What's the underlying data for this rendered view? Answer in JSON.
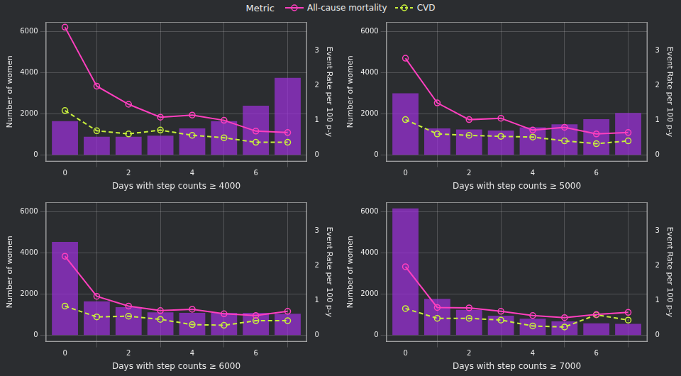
{
  "chart_data": [
    {
      "type": "bar",
      "legend": "top",
      "legend_title": "Metric",
      "x": [
        0,
        1,
        2,
        3,
        4,
        5,
        6,
        7
      ],
      "values": [
        1650,
        900,
        900,
        950,
        1300,
        1650,
        2400,
        3750
      ],
      "color": "#9b30d9",
      "series": [
        {
          "name": "All-cause mortality",
          "type": "line",
          "axis": "y2",
          "color": "#ff3fbf",
          "marker": "circle",
          "line_style": "solid",
          "values": [
            3.67,
            1.98,
            1.46,
            1.09,
            1.15,
            1.0,
            0.69,
            0.65
          ]
        },
        {
          "name": "CVD",
          "type": "line",
          "axis": "y2",
          "color": "#c8f03c",
          "marker": "circle",
          "line_style": "dashed",
          "values": [
            1.28,
            0.7,
            0.61,
            0.72,
            0.57,
            0.5,
            0.37,
            0.37
          ]
        }
      ],
      "xlabel": "Days with step counts ≥ 4000",
      "ylabel": "Number of women",
      "y2label": "Event Rate per 100 p-y",
      "xlim": [
        -0.6,
        7.6
      ],
      "xticks": [
        0,
        2,
        4,
        6
      ],
      "ylim": [
        -300,
        6450
      ],
      "yticks": [
        0,
        2000,
        4000,
        6000
      ],
      "y2lim": [
        -0.18,
        3.82
      ],
      "y2ticks": [
        0,
        1,
        2,
        3
      ],
      "grid": true
    },
    {
      "type": "bar",
      "x": [
        0,
        1,
        2,
        3,
        4,
        5,
        6,
        7
      ],
      "values": [
        3000,
        1300,
        1250,
        1200,
        1350,
        1500,
        1750,
        2050
      ],
      "color": "#9b30d9",
      "series": [
        {
          "name": "All-cause mortality",
          "type": "line",
          "axis": "y2",
          "color": "#ff3fbf",
          "marker": "circle",
          "line_style": "solid",
          "values": [
            2.78,
            1.5,
            1.02,
            1.06,
            0.72,
            0.8,
            0.61,
            0.65
          ]
        },
        {
          "name": "CVD",
          "type": "line",
          "axis": "y2",
          "color": "#c8f03c",
          "marker": "circle",
          "line_style": "dashed",
          "values": [
            1.02,
            0.61,
            0.57,
            0.54,
            0.52,
            0.41,
            0.33,
            0.41
          ]
        }
      ],
      "xlabel": "Days with step counts ≥ 5000",
      "ylabel": "Number of women",
      "y2label": "Event Rate per 100 p-y",
      "xlim": [
        -0.6,
        7.6
      ],
      "xticks": [
        0,
        2,
        4,
        6
      ],
      "ylim": [
        -300,
        6450
      ],
      "yticks": [
        0,
        2000,
        4000,
        6000
      ],
      "y2lim": [
        -0.18,
        3.82
      ],
      "y2ticks": [
        0,
        1,
        2,
        3
      ],
      "grid": true
    },
    {
      "type": "bar",
      "x": [
        0,
        1,
        2,
        3,
        4,
        5,
        6,
        7
      ],
      "values": [
        4530,
        1650,
        1370,
        1120,
        1090,
        1090,
        1090,
        1050
      ],
      "color": "#9b30d9",
      "series": [
        {
          "name": "All-cause mortality",
          "type": "line",
          "axis": "y2",
          "color": "#ff3fbf",
          "marker": "circle",
          "line_style": "solid",
          "values": [
            2.27,
            1.12,
            0.84,
            0.71,
            0.75,
            0.62,
            0.57,
            0.69
          ]
        },
        {
          "name": "CVD",
          "type": "line",
          "axis": "y2",
          "color": "#c8f03c",
          "marker": "circle",
          "line_style": "dashed",
          "values": [
            0.84,
            0.53,
            0.55,
            0.46,
            0.31,
            0.29,
            0.42,
            0.42
          ]
        }
      ],
      "xlabel": "Days with step counts ≥ 6000",
      "ylabel": "Number of women",
      "y2label": "Event Rate per 100 p-y",
      "xlim": [
        -0.6,
        7.6
      ],
      "xticks": [
        0,
        2,
        4,
        6
      ],
      "ylim": [
        -300,
        6450
      ],
      "yticks": [
        0,
        2000,
        4000,
        6000
      ],
      "y2lim": [
        -0.18,
        3.82
      ],
      "y2ticks": [
        0,
        1,
        2,
        3
      ],
      "grid": true
    },
    {
      "type": "bar",
      "x": [
        0,
        1,
        2,
        3,
        4,
        5,
        6,
        7
      ],
      "values": [
        6150,
        1770,
        1240,
        960,
        810,
        680,
        590,
        560
      ],
      "color": "#9b30d9",
      "series": [
        {
          "name": "All-cause mortality",
          "type": "line",
          "axis": "y2",
          "color": "#ff3fbf",
          "marker": "circle",
          "line_style": "solid",
          "values": [
            1.97,
            0.8,
            0.79,
            0.69,
            0.57,
            0.51,
            0.6,
            0.66
          ]
        },
        {
          "name": "CVD",
          "type": "line",
          "axis": "y2",
          "color": "#c8f03c",
          "marker": "circle",
          "line_style": "dashed",
          "values": [
            0.77,
            0.49,
            0.49,
            0.44,
            0.27,
            0.24,
            0.59,
            0.44
          ]
        }
      ],
      "xlabel": "Days with step counts ≥ 7000",
      "ylabel": "Number of women",
      "y2label": "Event Rate per 100 p-y",
      "xlim": [
        -0.6,
        7.6
      ],
      "xticks": [
        0,
        2,
        4,
        6
      ],
      "ylim": [
        -300,
        6450
      ],
      "yticks": [
        0,
        2000,
        4000,
        6000
      ],
      "y2lim": [
        -0.18,
        3.82
      ],
      "y2ticks": [
        0,
        1,
        2,
        3
      ],
      "grid": true
    }
  ]
}
